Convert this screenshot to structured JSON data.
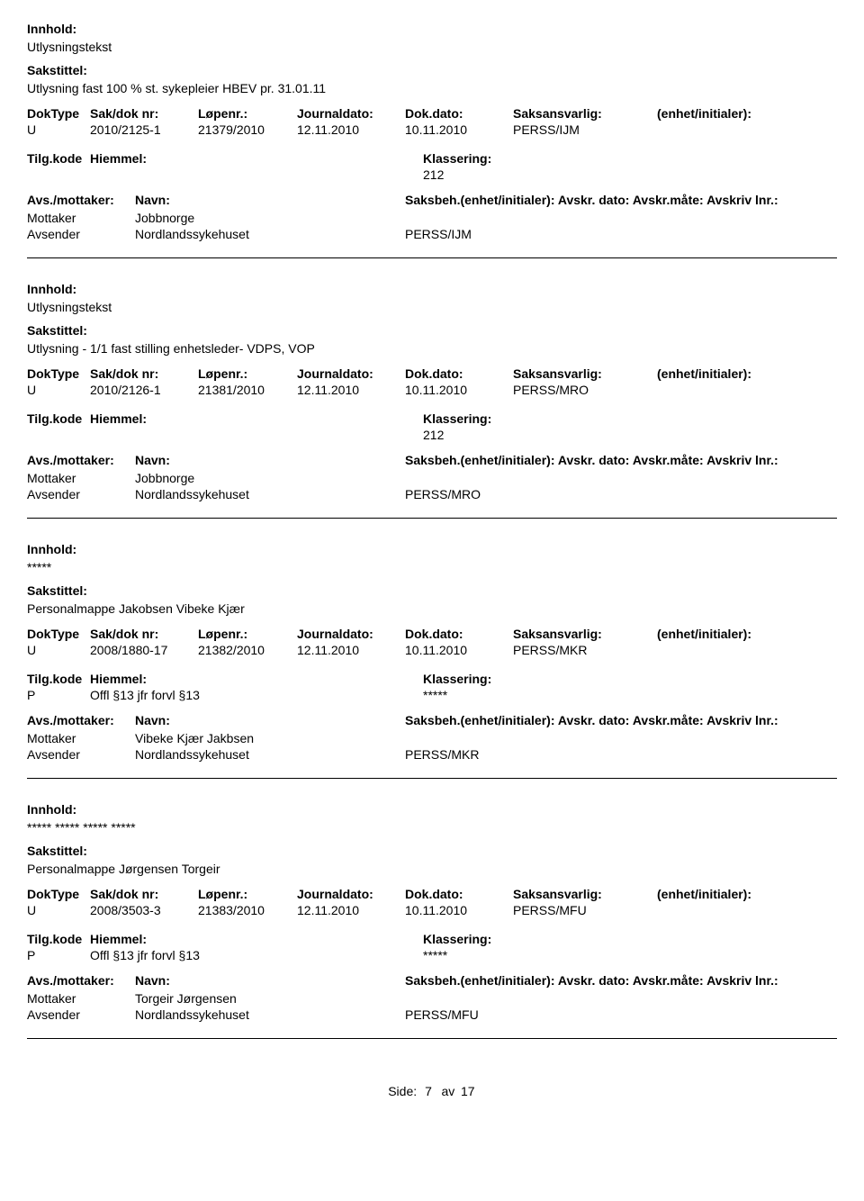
{
  "labels": {
    "innhold": "Innhold:",
    "sakstittel": "Sakstittel:",
    "doktype": "DokType",
    "sakdok": "Sak/dok nr:",
    "lopenr": "Løpenr.:",
    "journaldato": "Journaldato:",
    "dokdato": "Dok.dato:",
    "saksansvarlig": "Saksansvarlig:",
    "enhet": "(enhet/initialer):",
    "tilgkode": "Tilg.kode",
    "hiemmel": "Hiemmel:",
    "klassering": "Klassering:",
    "avsMottaker": "Avs./mottaker:",
    "navn": "Navn:",
    "saksbehLine": "Saksbeh.(enhet/initialer): Avskr. dato:  Avskr.måte: Avskriv lnr.:",
    "mottaker": "Mottaker",
    "avsender": "Avsender",
    "sidePrefix": "Side:",
    "sideMid": "av"
  },
  "footer": {
    "page": "7",
    "total": "17"
  },
  "entries": [
    {
      "innhold": "Utlysningstekst",
      "sakstittel": "Utlysning fast 100 % st. sykepleier HBEV pr. 31.01.11",
      "doktype": "U",
      "sakdok": "2010/2125-1",
      "lopenr": "21379/2010",
      "journaldato": "12.11.2010",
      "dokdato": "10.11.2010",
      "saksansvarlig": "PERSS/IJM",
      "tilgcode": "",
      "hiemmel": "",
      "klassering": "212",
      "parties": [
        {
          "role": "Mottaker",
          "name": "Jobbnorge",
          "unit": ""
        },
        {
          "role": "Avsender",
          "name": "Nordlandssykehuset",
          "unit": "PERSS/IJM"
        }
      ]
    },
    {
      "innhold": "Utlysningstekst",
      "sakstittel": "Utlysning - 1/1 fast stilling enhetsleder- VDPS, VOP",
      "doktype": "U",
      "sakdok": "2010/2126-1",
      "lopenr": "21381/2010",
      "journaldato": "12.11.2010",
      "dokdato": "10.11.2010",
      "saksansvarlig": "PERSS/MRO",
      "tilgcode": "",
      "hiemmel": "",
      "klassering": "212",
      "parties": [
        {
          "role": "Mottaker",
          "name": "Jobbnorge",
          "unit": ""
        },
        {
          "role": "Avsender",
          "name": "Nordlandssykehuset",
          "unit": "PERSS/MRO"
        }
      ]
    },
    {
      "innhold": "*****",
      "sakstittel": "Personalmappe Jakobsen Vibeke Kjær",
      "doktype": "U",
      "sakdok": "2008/1880-17",
      "lopenr": "21382/2010",
      "journaldato": "12.11.2010",
      "dokdato": "10.11.2010",
      "saksansvarlig": "PERSS/MKR",
      "tilgcode": "P",
      "hiemmel": "Offl §13 jfr forvl §13",
      "klassering": "*****",
      "parties": [
        {
          "role": "Mottaker",
          "name": "Vibeke Kjær Jakbsen",
          "unit": ""
        },
        {
          "role": "Avsender",
          "name": "Nordlandssykehuset",
          "unit": "PERSS/MKR"
        }
      ]
    },
    {
      "innhold": "***** ***** ***** *****",
      "sakstittel": "Personalmappe Jørgensen Torgeir",
      "doktype": "U",
      "sakdok": "2008/3503-3",
      "lopenr": "21383/2010",
      "journaldato": "12.11.2010",
      "dokdato": "10.11.2010",
      "saksansvarlig": "PERSS/MFU",
      "tilgcode": "P",
      "hiemmel": "Offl §13 jfr forvl §13",
      "klassering": "*****",
      "parties": [
        {
          "role": "Mottaker",
          "name": "Torgeir Jørgensen",
          "unit": ""
        },
        {
          "role": "Avsender",
          "name": "Nordlandssykehuset",
          "unit": "PERSS/MFU"
        }
      ]
    }
  ]
}
